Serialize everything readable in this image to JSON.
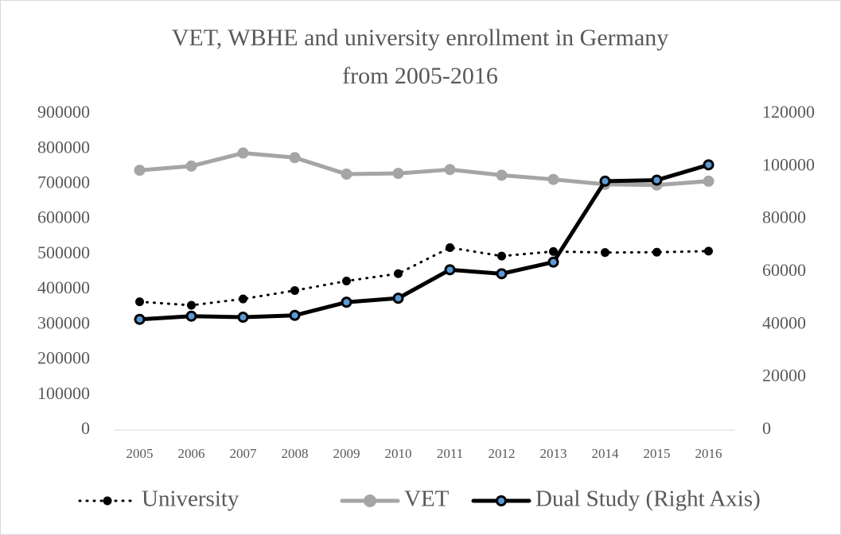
{
  "chart_data": {
    "type": "line",
    "title": "VET, WBHE and university enrollment in Germany from 2005-2016",
    "categories": [
      "2005",
      "2006",
      "2007",
      "2008",
      "2009",
      "2010",
      "2011",
      "2012",
      "2013",
      "2014",
      "2015",
      "2016"
    ],
    "ylim": [
      0,
      900000
    ],
    "yticks": [
      0,
      100000,
      200000,
      300000,
      400000,
      500000,
      600000,
      700000,
      800000,
      900000
    ],
    "y2lim": [
      0,
      120000
    ],
    "y2ticks": [
      0,
      20000,
      40000,
      60000,
      80000,
      100000,
      120000
    ],
    "grid": false,
    "legend": "bottom",
    "series": [
      {
        "name": "University",
        "color": "#000000",
        "line_style": "dotted",
        "marker_color": "#000000",
        "values": [
          365000,
          355000,
          373000,
          397000,
          424000,
          445000,
          519000,
          495000,
          508000,
          505000,
          506000,
          509000
        ]
      },
      {
        "name": "VET",
        "color": "#a5a5a5",
        "line_style": "solid",
        "marker_color": "#a5a5a5",
        "values": [
          739000,
          751000,
          788000,
          775000,
          728000,
          730000,
          741000,
          725000,
          713000,
          699000,
          697000,
          708000
        ]
      },
      {
        "name": "Dual Study (Right Axis)",
        "color": "#000000",
        "line_style": "solid",
        "marker_color": "#5b9bd5",
        "axis": "y2",
        "values": [
          42000,
          43200,
          42800,
          43500,
          48500,
          50000,
          60800,
          59300,
          63700,
          94400,
          94800,
          100600
        ]
      }
    ]
  }
}
